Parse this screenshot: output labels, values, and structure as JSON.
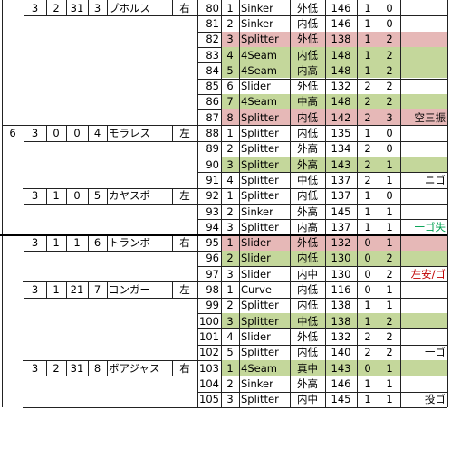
{
  "colors": {
    "red_fill": "#e6b8b7",
    "green_fill": "#c4d79b",
    "red_text": "#c00000",
    "green_text": "#00a050"
  },
  "batters": [
    {
      "inning": "",
      "outs": "3",
      "count_a": "2",
      "count_b": "31",
      "order": "3",
      "name": "プホルス",
      "hand": "右",
      "pitches": [
        {
          "no": "80",
          "idx": "1",
          "type": "Sinker",
          "loc": "外低",
          "speed": "146",
          "b": "1",
          "s": "0",
          "result": "",
          "hl": ""
        },
        {
          "no": "81",
          "idx": "2",
          "type": "Sinker",
          "loc": "内低",
          "speed": "146",
          "b": "1",
          "s": "0",
          "result": "",
          "hl": ""
        },
        {
          "no": "82",
          "idx": "3",
          "type": "Splitter",
          "loc": "外低",
          "speed": "138",
          "b": "1",
          "s": "2",
          "result": "",
          "hl": "red"
        },
        {
          "no": "83",
          "idx": "4",
          "type": "4Seam",
          "loc": "内低",
          "speed": "148",
          "b": "1",
          "s": "2",
          "result": "",
          "hl": "green"
        },
        {
          "no": "84",
          "idx": "5",
          "type": "4Seam",
          "loc": "内高",
          "speed": "148",
          "b": "1",
          "s": "2",
          "result": "",
          "hl": "green"
        },
        {
          "no": "85",
          "idx": "6",
          "type": "Slider",
          "loc": "外低",
          "speed": "132",
          "b": "2",
          "s": "2",
          "result": "",
          "hl": ""
        },
        {
          "no": "86",
          "idx": "7",
          "type": "4Seam",
          "loc": "中高",
          "speed": "148",
          "b": "2",
          "s": "2",
          "result": "",
          "hl": "green"
        },
        {
          "no": "87",
          "idx": "8",
          "type": "Splitter",
          "loc": "内低",
          "speed": "142",
          "b": "2",
          "s": "3",
          "result": "空三振",
          "hl": "red"
        }
      ]
    },
    {
      "inning": "6",
      "outs": "3",
      "count_a": "0",
      "count_b": "0",
      "order": "4",
      "name": "モラレス",
      "hand": "左",
      "pitches": [
        {
          "no": "88",
          "idx": "1",
          "type": "Splitter",
          "loc": "内低",
          "speed": "135",
          "b": "1",
          "s": "0",
          "result": "",
          "hl": ""
        },
        {
          "no": "89",
          "idx": "2",
          "type": "Splitter",
          "loc": "外高",
          "speed": "134",
          "b": "2",
          "s": "0",
          "result": "",
          "hl": ""
        },
        {
          "no": "90",
          "idx": "3",
          "type": "Splitter",
          "loc": "外高",
          "speed": "143",
          "b": "2",
          "s": "1",
          "result": "",
          "hl": "green"
        },
        {
          "no": "91",
          "idx": "4",
          "type": "Splitter",
          "loc": "中低",
          "speed": "137",
          "b": "2",
          "s": "1",
          "result": "ニゴ",
          "hl": ""
        }
      ]
    },
    {
      "inning": "",
      "outs": "3",
      "count_a": "1",
      "count_b": "0",
      "order": "5",
      "name": "カヤスポ",
      "hand": "左",
      "pitches": [
        {
          "no": "92",
          "idx": "1",
          "type": "Splitter",
          "loc": "内低",
          "speed": "137",
          "b": "1",
          "s": "0",
          "result": "",
          "hl": ""
        },
        {
          "no": "93",
          "idx": "2",
          "type": "Sinker",
          "loc": "外高",
          "speed": "145",
          "b": "1",
          "s": "1",
          "result": "",
          "hl": ""
        },
        {
          "no": "94",
          "idx": "3",
          "type": "Splitter",
          "loc": "内高",
          "speed": "137",
          "b": "1",
          "s": "1",
          "result": "一ゴ失",
          "hl": "",
          "rc": "green"
        }
      ]
    },
    {
      "inning": "",
      "outs": "3",
      "count_a": "1",
      "count_b": "1",
      "order": "6",
      "name": "トランボ",
      "hand": "右",
      "pitches": [
        {
          "no": "95",
          "idx": "1",
          "type": "Slider",
          "loc": "外低",
          "speed": "132",
          "b": "0",
          "s": "1",
          "result": "",
          "hl": "red"
        },
        {
          "no": "96",
          "idx": "2",
          "type": "Slider",
          "loc": "内低",
          "speed": "130",
          "b": "0",
          "s": "2",
          "result": "",
          "hl": "green"
        },
        {
          "no": "97",
          "idx": "3",
          "type": "Slider",
          "loc": "内中",
          "speed": "130",
          "b": "0",
          "s": "2",
          "result": "左安/ゴ",
          "hl": "",
          "rc": "red"
        }
      ]
    },
    {
      "inning": "",
      "outs": "3",
      "count_a": "1",
      "count_b": "21",
      "order": "7",
      "name": "コンガー",
      "hand": "左",
      "pitches": [
        {
          "no": "98",
          "idx": "1",
          "type": "Curve",
          "loc": "内低",
          "speed": "116",
          "b": "0",
          "s": "1",
          "result": "",
          "hl": ""
        },
        {
          "no": "99",
          "idx": "2",
          "type": "Splitter",
          "loc": "内低",
          "speed": "138",
          "b": "1",
          "s": "1",
          "result": "",
          "hl": ""
        },
        {
          "no": "100",
          "idx": "3",
          "type": "Splitter",
          "loc": "中低",
          "speed": "138",
          "b": "1",
          "s": "2",
          "result": "",
          "hl": "green"
        },
        {
          "no": "101",
          "idx": "4",
          "type": "Slider",
          "loc": "外低",
          "speed": "132",
          "b": "2",
          "s": "2",
          "result": "",
          "hl": ""
        },
        {
          "no": "102",
          "idx": "5",
          "type": "Splitter",
          "loc": "内低",
          "speed": "140",
          "b": "2",
          "s": "2",
          "result": "一ゴ",
          "hl": ""
        }
      ]
    },
    {
      "inning": "",
      "outs": "3",
      "count_a": "2",
      "count_b": "31",
      "order": "8",
      "name": "ボアジャス",
      "hand": "右",
      "pitches": [
        {
          "no": "103",
          "idx": "1",
          "type": "4Seam",
          "loc": "真中",
          "speed": "143",
          "b": "0",
          "s": "1",
          "result": "",
          "hl": "green"
        },
        {
          "no": "104",
          "idx": "2",
          "type": "Sinker",
          "loc": "外高",
          "speed": "146",
          "b": "1",
          "s": "1",
          "result": "",
          "hl": ""
        },
        {
          "no": "105",
          "idx": "3",
          "type": "Splitter",
          "loc": "内中",
          "speed": "145",
          "b": "1",
          "s": "1",
          "result": "投ゴ",
          "hl": ""
        }
      ]
    }
  ]
}
